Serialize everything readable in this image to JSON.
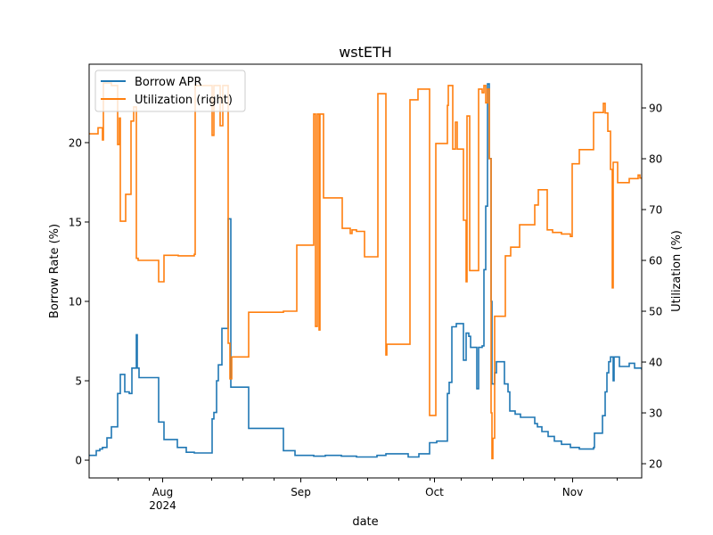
{
  "chart_data": {
    "type": "line",
    "title": "wstETH",
    "xlabel": "date",
    "ylabel": "Borrow Rate (%)",
    "ylabel_right": "Utilization (%)",
    "x_units": "days since 2024-07-01",
    "xlim": [
      14.5,
      138.5
    ],
    "ylim": [
      -1.12,
      24.94
    ],
    "ylim_right": [
      17.2,
      98.6
    ],
    "x_major_ticks": [
      {
        "x": 31,
        "label": "Aug",
        "sublabel": "2024"
      },
      {
        "x": 62,
        "label": "Sep"
      },
      {
        "x": 92,
        "label": "Oct"
      },
      {
        "x": 123,
        "label": "Nov"
      }
    ],
    "x_minor_ticks": [
      21,
      28,
      42,
      49,
      56,
      70,
      77,
      84,
      91,
      98,
      105,
      112,
      119,
      133
    ],
    "y_ticks": [
      0,
      5,
      10,
      15,
      20
    ],
    "y_ticks_right": [
      20,
      30,
      40,
      50,
      60,
      70,
      80,
      90
    ],
    "legend_position": "upper-left",
    "series": [
      {
        "name": "Borrow APR",
        "axis": "left",
        "color": "#1f77b4",
        "points": [
          [
            14.5,
            0.3
          ],
          [
            16.1,
            0.6
          ],
          [
            16.9,
            0.7
          ],
          [
            17.5,
            0.8
          ],
          [
            18.5,
            1.4
          ],
          [
            19.5,
            2.1
          ],
          [
            20.9,
            4.2
          ],
          [
            21.5,
            5.4
          ],
          [
            22.5,
            4.3
          ],
          [
            23.5,
            4.2
          ],
          [
            24.1,
            5.8
          ],
          [
            25.1,
            7.9
          ],
          [
            25.3,
            5.8
          ],
          [
            25.7,
            5.2
          ],
          [
            30.1,
            2.4
          ],
          [
            31.3,
            1.3
          ],
          [
            34.3,
            0.8
          ],
          [
            36.3,
            0.5
          ],
          [
            38.1,
            0.45
          ],
          [
            42.1,
            2.6
          ],
          [
            42.5,
            3.0
          ],
          [
            43.1,
            5.0
          ],
          [
            43.5,
            6.0
          ],
          [
            44.3,
            8.3
          ],
          [
            45.7,
            15.2
          ],
          [
            46.3,
            4.6
          ],
          [
            50.3,
            2.0
          ],
          [
            58.1,
            0.6
          ],
          [
            60.7,
            0.3
          ],
          [
            64.9,
            0.25
          ],
          [
            67.5,
            0.3
          ],
          [
            71.1,
            0.25
          ],
          [
            74.5,
            0.2
          ],
          [
            79.1,
            0.3
          ],
          [
            81.1,
            0.4
          ],
          [
            86.1,
            0.2
          ],
          [
            88.5,
            0.4
          ],
          [
            90.9,
            1.1
          ],
          [
            92.5,
            1.2
          ],
          [
            94.9,
            4.2
          ],
          [
            95.3,
            4.9
          ],
          [
            95.9,
            8.4
          ],
          [
            96.9,
            8.6
          ],
          [
            98.5,
            6.3
          ],
          [
            99.1,
            8.0
          ],
          [
            99.7,
            7.8
          ],
          [
            100.1,
            7.1
          ],
          [
            101.5,
            4.5
          ],
          [
            101.9,
            7.1
          ],
          [
            102.7,
            7.2
          ],
          [
            103.1,
            12
          ],
          [
            103.5,
            16
          ],
          [
            103.9,
            23.7
          ],
          [
            104.3,
            19
          ],
          [
            104.7,
            10
          ],
          [
            104.9,
            4.8
          ],
          [
            105.5,
            5.5
          ],
          [
            105.9,
            6.2
          ],
          [
            107.7,
            4.8
          ],
          [
            108.5,
            4.3
          ],
          [
            108.9,
            3.1
          ],
          [
            110.1,
            2.9
          ],
          [
            111.3,
            2.7
          ],
          [
            114.5,
            2.3
          ],
          [
            115.1,
            2.1
          ],
          [
            116.1,
            1.8
          ],
          [
            117.5,
            1.5
          ],
          [
            118.9,
            1.2
          ],
          [
            120.5,
            1.0
          ],
          [
            122.5,
            0.8
          ],
          [
            124.5,
            0.7
          ],
          [
            127.7,
            0.8
          ],
          [
            127.9,
            1.7
          ],
          [
            129.7,
            2.8
          ],
          [
            130.3,
            4.3
          ],
          [
            130.7,
            5.5
          ],
          [
            131.1,
            6.2
          ],
          [
            131.5,
            6.5
          ],
          [
            132.1,
            5.0
          ],
          [
            132.3,
            6.5
          ],
          [
            133.5,
            5.9
          ],
          [
            135.7,
            6.1
          ],
          [
            136.9,
            5.8
          ],
          [
            138.5,
            5.7
          ]
        ]
      },
      {
        "name": "Utilization (right)",
        "axis": "right",
        "color": "#ff7f0e",
        "points": [
          [
            14.5,
            84.9
          ],
          [
            16.5,
            86.1
          ],
          [
            17.5,
            83.7
          ],
          [
            17.7,
            94.9
          ],
          [
            19.5,
            94.4
          ],
          [
            20.9,
            82.8
          ],
          [
            21.3,
            88
          ],
          [
            21.5,
            67.7
          ],
          [
            22.7,
            73
          ],
          [
            23.9,
            87.4
          ],
          [
            24.5,
            90.2
          ],
          [
            25.1,
            60.4
          ],
          [
            25.5,
            60
          ],
          [
            30.1,
            55.8
          ],
          [
            31.3,
            61
          ],
          [
            34.5,
            60.9
          ],
          [
            38.1,
            61.2
          ],
          [
            38.3,
            94.4
          ],
          [
            42.1,
            84.6
          ],
          [
            42.5,
            94.4
          ],
          [
            43.9,
            86.5
          ],
          [
            44.5,
            94.4
          ],
          [
            45.7,
            43.7
          ],
          [
            46.1,
            36.7
          ],
          [
            46.5,
            41
          ],
          [
            50.3,
            49.8
          ],
          [
            58.1,
            50
          ],
          [
            61.1,
            63
          ],
          [
            64.9,
            88.8
          ],
          [
            65.3,
            47
          ],
          [
            65.7,
            88.8
          ],
          [
            66.1,
            46.3
          ],
          [
            66.3,
            88.8
          ],
          [
            67.1,
            72.3
          ],
          [
            71.3,
            66.3
          ],
          [
            73.1,
            65.3
          ],
          [
            73.5,
            66
          ],
          [
            74.5,
            65.7
          ],
          [
            76.3,
            60.7
          ],
          [
            79.3,
            92.8
          ],
          [
            81.1,
            41.4
          ],
          [
            81.3,
            43.5
          ],
          [
            86.5,
            91.6
          ],
          [
            88.3,
            93.7
          ],
          [
            90.9,
            29.5
          ],
          [
            92.3,
            83
          ],
          [
            94.9,
            90.5
          ],
          [
            95.1,
            94.4
          ],
          [
            96.1,
            81.9
          ],
          [
            96.7,
            87.2
          ],
          [
            97.1,
            81.9
          ],
          [
            98.5,
            67.9
          ],
          [
            99.1,
            55.8
          ],
          [
            99.3,
            88.4
          ],
          [
            99.9,
            58
          ],
          [
            101.9,
            93.7
          ],
          [
            102.7,
            93
          ],
          [
            103.1,
            94.4
          ],
          [
            103.5,
            91
          ],
          [
            103.9,
            93.7
          ],
          [
            104.3,
            80
          ],
          [
            104.7,
            30
          ],
          [
            104.9,
            21
          ],
          [
            105.1,
            25
          ],
          [
            105.5,
            49
          ],
          [
            107.9,
            60.9
          ],
          [
            109.1,
            62.6
          ],
          [
            111.1,
            67
          ],
          [
            114.5,
            70.9
          ],
          [
            115.3,
            73.9
          ],
          [
            117.3,
            66
          ],
          [
            118.5,
            65.5
          ],
          [
            120.5,
            65.2
          ],
          [
            122.5,
            64.7
          ],
          [
            122.9,
            79
          ],
          [
            124.5,
            81.8
          ],
          [
            127.7,
            89.1
          ],
          [
            129.9,
            90.9
          ],
          [
            130.3,
            89
          ],
          [
            130.9,
            85.4
          ],
          [
            131.5,
            77.9
          ],
          [
            131.9,
            54.6
          ],
          [
            132.1,
            79.3
          ],
          [
            133.1,
            75.3
          ],
          [
            135.7,
            76.1
          ],
          [
            137.7,
            76.8
          ],
          [
            138.1,
            76.2
          ]
        ]
      }
    ]
  }
}
